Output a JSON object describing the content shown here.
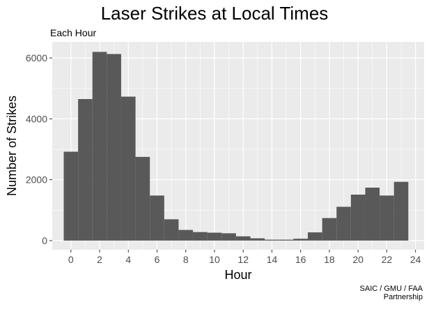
{
  "chart_data": {
    "type": "bar",
    "title": "Laser Strikes at Local Times",
    "subtitle": "Each Hour",
    "caption_lines": [
      "SAIC / GMU / FAA",
      "Partnership"
    ],
    "xlabel": "Hour",
    "ylabel": "Number of Strikes",
    "x": [
      0,
      1,
      2,
      3,
      4,
      5,
      6,
      7,
      8,
      9,
      10,
      11,
      12,
      13,
      14,
      15,
      16,
      17,
      18,
      19,
      20,
      21,
      22,
      23
    ],
    "values": [
      2920,
      4650,
      6200,
      6130,
      4730,
      2750,
      1480,
      700,
      350,
      280,
      260,
      240,
      140,
      75,
      30,
      30,
      60,
      270,
      740,
      1110,
      1510,
      1740,
      1480,
      1930
    ],
    "xlim": [
      -1.3,
      24.6
    ],
    "ylim": [
      -300,
      6530
    ],
    "xticks": [
      0,
      2,
      4,
      6,
      8,
      10,
      12,
      14,
      16,
      18,
      20,
      22,
      24
    ],
    "yticks": [
      0,
      2000,
      4000,
      6000
    ],
    "bar_color": "#595959",
    "panel_color": "#ebebeb",
    "grid": true
  }
}
